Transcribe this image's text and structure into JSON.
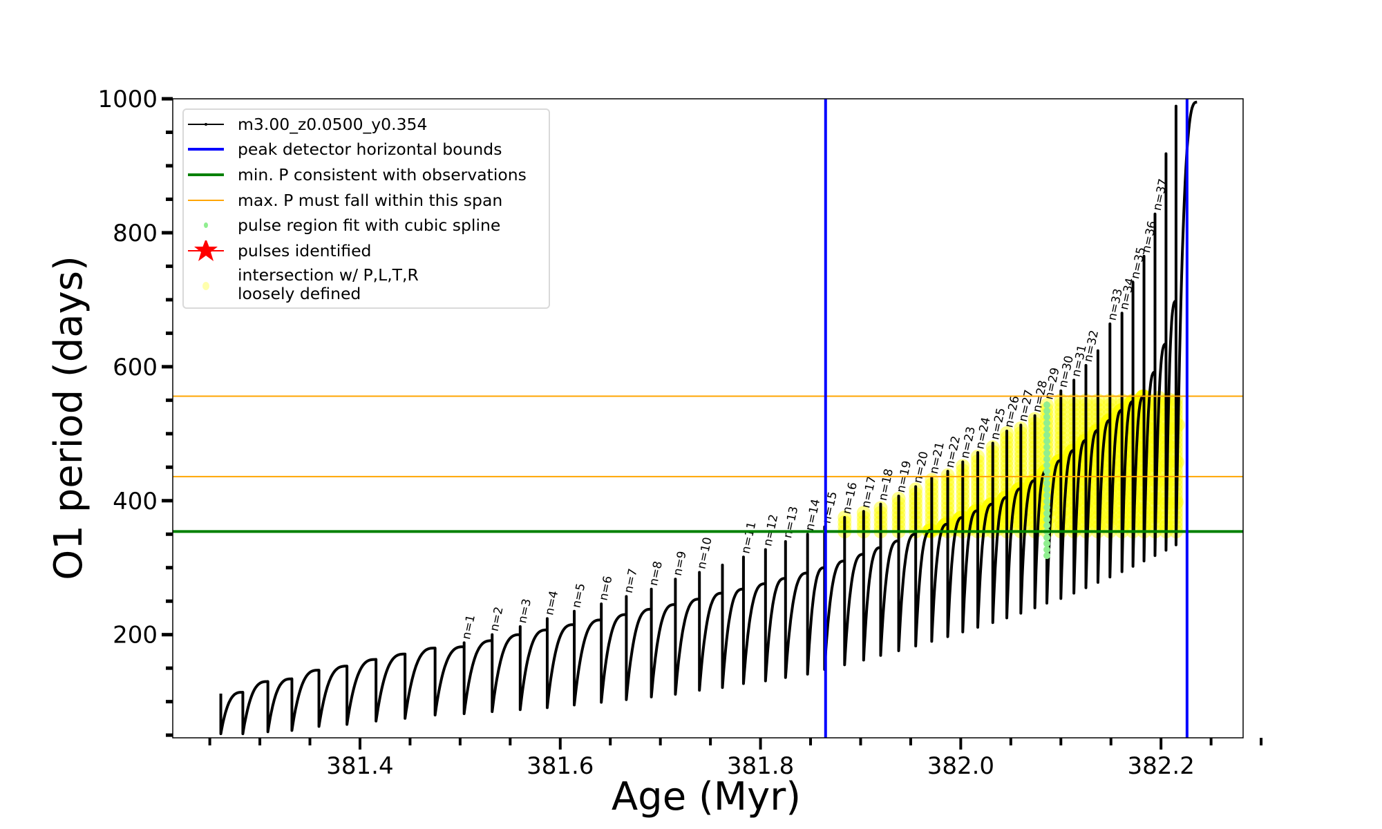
{
  "chart_data": {
    "type": "line",
    "xlabel": "Age (Myr)",
    "ylabel": "O1 period (days)",
    "xlim": [
      381.213,
      382.282
    ],
    "ylim": [
      46,
      1000
    ],
    "xticks": [
      "381.4",
      "381.6",
      "381.8",
      "382.0",
      "382.2"
    ],
    "yticks": [
      "200",
      "400",
      "600",
      "800",
      "1000"
    ],
    "grid": false,
    "legend_position": "top-left",
    "series_name": "m3.00_z0.0500_y0.354",
    "colors": {
      "track": "#000000",
      "peak_bounds": "#0000ff",
      "min_period": "#008000",
      "max_period_span": "#ffa500",
      "spline_fit": "#90ee90",
      "pulses_identified": "#ff0000",
      "intersection": "#ffff00"
    },
    "track_start": {
      "age": 381.261,
      "period": 112,
      "min": 52
    },
    "pulse_columns": [
      "age",
      "label",
      "period_before_pulse",
      "pulse_peak_period",
      "period_after_pulse"
    ],
    "pulses": [
      [
        381.283,
        "",
        114,
        114,
        52
      ],
      [
        381.308,
        "",
        130,
        130,
        55
      ],
      [
        381.332,
        "",
        134,
        134,
        57
      ],
      [
        381.359,
        "",
        147,
        147,
        63
      ],
      [
        381.387,
        "",
        153,
        153,
        66
      ],
      [
        381.416,
        "",
        163,
        163,
        71
      ],
      [
        381.445,
        "",
        171,
        171,
        75
      ],
      [
        381.475,
        "",
        180,
        180,
        80
      ],
      [
        381.504,
        "n=1",
        182,
        188,
        82
      ],
      [
        381.532,
        "n=2",
        191,
        200,
        85
      ],
      [
        381.56,
        "n=3",
        200,
        212,
        88
      ],
      [
        381.587,
        "n=4",
        207,
        224,
        91
      ],
      [
        381.614,
        "n=5",
        215,
        235,
        95
      ],
      [
        381.641,
        "n=6",
        222,
        246,
        99
      ],
      [
        381.666,
        "n=7",
        230,
        257,
        103
      ],
      [
        381.691,
        "n=8",
        238,
        268,
        107
      ],
      [
        381.715,
        "n=9",
        245,
        283,
        111
      ],
      [
        381.739,
        "n=10",
        253,
        293,
        117
      ],
      [
        381.762,
        "",
        262,
        304,
        121
      ],
      [
        381.783,
        "n=11",
        268,
        316,
        127
      ],
      [
        381.805,
        "n=12",
        276,
        327,
        131
      ],
      [
        381.825,
        "n=13",
        284,
        339,
        136
      ],
      [
        381.847,
        "n=14",
        292,
        350,
        141
      ],
      [
        381.864,
        "n=15",
        300,
        361,
        148
      ],
      [
        381.884,
        "n=16",
        310,
        375,
        155
      ],
      [
        381.903,
        "n=17",
        320,
        384,
        162
      ],
      [
        381.92,
        "n=18",
        330,
        395,
        169
      ],
      [
        381.938,
        "n=19",
        340,
        407,
        176
      ],
      [
        381.955,
        "n=20",
        350,
        421,
        183
      ],
      [
        381.971,
        "n=21",
        356,
        435,
        190
      ],
      [
        381.987,
        "n=22",
        365,
        444,
        197
      ],
      [
        382.002,
        "n=23",
        375,
        458,
        204
      ],
      [
        382.017,
        "n=24",
        385,
        472,
        211
      ],
      [
        382.032,
        "n=25",
        395,
        486,
        218
      ],
      [
        382.046,
        "n=26",
        405,
        504,
        225
      ],
      [
        382.06,
        "n=27",
        418,
        513,
        232
      ],
      [
        382.074,
        "n=28",
        430,
        527,
        240
      ],
      [
        382.086,
        "n=29",
        445,
        546,
        247
      ],
      [
        382.1,
        "n=30",
        460,
        564,
        254
      ],
      [
        382.113,
        "n=31",
        475,
        580,
        262
      ],
      [
        382.125,
        "n=32",
        490,
        602,
        270
      ],
      [
        382.137,
        "",
        505,
        624,
        278
      ],
      [
        382.149,
        "n=33",
        520,
        664,
        286
      ],
      [
        382.161,
        "n=34",
        535,
        680,
        294
      ],
      [
        382.172,
        "n=35",
        548,
        726,
        302
      ],
      [
        382.183,
        "n=36",
        556,
        765,
        310
      ],
      [
        382.194,
        "n=37",
        592,
        828,
        318
      ],
      [
        382.205,
        "",
        634,
        918,
        326
      ],
      [
        382.215,
        "",
        698,
        989,
        334
      ]
    ],
    "track_end": {
      "age": 382.236,
      "period": 995
    },
    "spline_fit_pulse": {
      "label": "n=29",
      "period_range": [
        318,
        546
      ]
    },
    "peak_detector_bounds": [
      381.865,
      382.226
    ],
    "min_period_observed": 354,
    "max_period_span": [
      436,
      556
    ]
  },
  "legend": {
    "items": [
      {
        "label": "m3.00_z0.0500_y0.354",
        "marker": "line-with-dots"
      },
      {
        "label": "peak detector horizontal bounds",
        "marker": "blue-line"
      },
      {
        "label": "min. P consistent with observations",
        "marker": "green-line"
      },
      {
        "label": "max. P must fall within this span",
        "marker": "orange-line"
      },
      {
        "label": "pulse region fit with cubic spline",
        "marker": "light-green-dot"
      },
      {
        "label": "pulses identified",
        "marker": "red-star"
      },
      {
        "label": "intersection w/ P,L,T,R",
        "label2": "loosely defined",
        "marker": "yellow-dot"
      }
    ]
  }
}
